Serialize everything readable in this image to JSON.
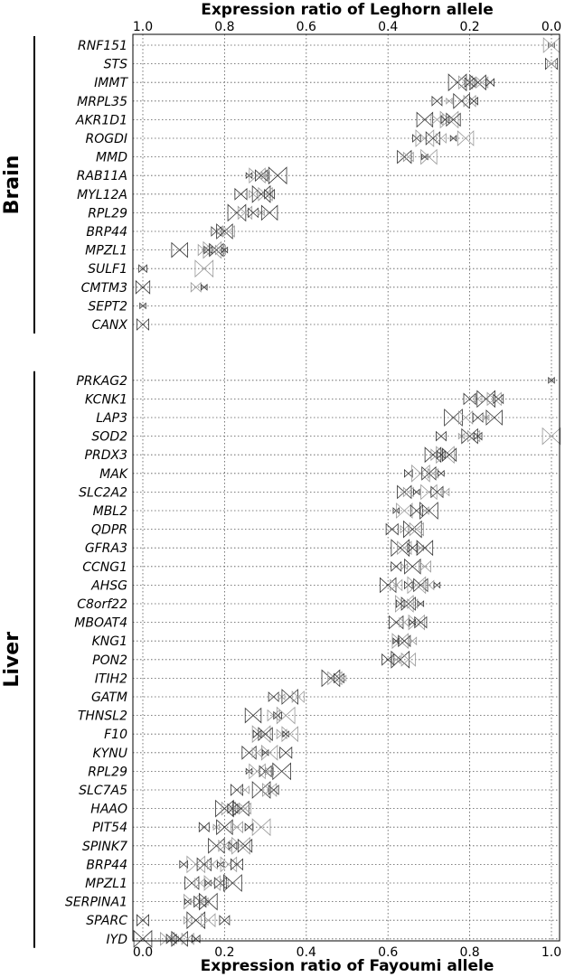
{
  "chart_data": {
    "type": "scatter",
    "xlabel_top": "Expression ratio of Leghorn allele",
    "xlabel_bottom": "Expression ratio of Fayoumi allele",
    "xlim": [
      0.0,
      1.0
    ],
    "bottom_ticks": [
      "0.0",
      "0.2",
      "0.4",
      "0.6",
      "0.8",
      "1.0"
    ],
    "top_ticks": [
      "1.0",
      "0.8",
      "0.6",
      "0.4",
      "0.2",
      "0.0"
    ],
    "grid": true,
    "marker": "bowtie triangles (size proportional to read depth)",
    "groups": [
      {
        "name": "Brain",
        "genes": [
          {
            "label": "RNF151",
            "values": [
              1.0,
              1.0
            ]
          },
          {
            "label": "STS",
            "values": [
              1.0,
              1.0
            ]
          },
          {
            "label": "IMMT",
            "values": [
              0.77,
              0.79,
              0.8,
              0.81,
              0.82,
              0.83,
              0.85
            ]
          },
          {
            "label": "MRPL35",
            "values": [
              0.72,
              0.75,
              0.78,
              0.8,
              0.81
            ]
          },
          {
            "label": "AKR1D1",
            "values": [
              0.69,
              0.72,
              0.74,
              0.75,
              0.76
            ]
          },
          {
            "label": "ROGDI",
            "values": [
              0.67,
              0.69,
              0.71,
              0.73,
              0.76,
              0.79
            ]
          },
          {
            "label": "MMD",
            "values": [
              0.64,
              0.65,
              0.69,
              0.7
            ]
          },
          {
            "label": "RAB11A",
            "values": [
              0.26,
              0.28,
              0.29,
              0.3,
              0.33
            ]
          },
          {
            "label": "MYL12A",
            "values": [
              0.24,
              0.27,
              0.29,
              0.3,
              0.31
            ]
          },
          {
            "label": "RPL29",
            "values": [
              0.23,
              0.25,
              0.27,
              0.29,
              0.31
            ]
          },
          {
            "label": "BRP44",
            "values": [
              0.18,
              0.19,
              0.2,
              0.21
            ]
          },
          {
            "label": "MPZL1",
            "values": [
              0.09,
              0.15,
              0.16,
              0.17,
              0.18,
              0.19,
              0.2
            ]
          },
          {
            "label": "SULF1",
            "values": [
              0.0,
              0.15
            ]
          },
          {
            "label": "CMTM3",
            "values": [
              0.0,
              0.13,
              0.15
            ]
          },
          {
            "label": "SEPT2",
            "values": [
              0.0
            ]
          },
          {
            "label": "CANX",
            "values": [
              0.0
            ]
          }
        ]
      },
      {
        "name": "Liver",
        "genes": [
          {
            "label": "PRKAG2",
            "values": [
              1.0
            ]
          },
          {
            "label": "KCNK1",
            "values": [
              0.8,
              0.82,
              0.84,
              0.86,
              0.87
            ]
          },
          {
            "label": "LAP3",
            "values": [
              0.76,
              0.79,
              0.82,
              0.84,
              0.86
            ]
          },
          {
            "label": "SOD2",
            "values": [
              0.73,
              0.78,
              0.8,
              0.81,
              0.82,
              1.0
            ]
          },
          {
            "label": "PRDX3",
            "values": [
              0.71,
              0.72,
              0.73,
              0.74,
              0.75
            ]
          },
          {
            "label": "MAK",
            "values": [
              0.65,
              0.68,
              0.7,
              0.71,
              0.73
            ]
          },
          {
            "label": "SLC2A2",
            "values": [
              0.64,
              0.65,
              0.67,
              0.7,
              0.72,
              0.74
            ]
          },
          {
            "label": "MBL2",
            "values": [
              0.62,
              0.64,
              0.67,
              0.69,
              0.7
            ]
          },
          {
            "label": "QDPR",
            "values": [
              0.61,
              0.64,
              0.66,
              0.67
            ]
          },
          {
            "label": "GFRA3",
            "values": [
              0.63,
              0.64,
              0.66,
              0.68,
              0.69
            ]
          },
          {
            "label": "CCNG1",
            "values": [
              0.62,
              0.64,
              0.66,
              0.69
            ]
          },
          {
            "label": "AHSG",
            "values": [
              0.6,
              0.62,
              0.65,
              0.67,
              0.68,
              0.7,
              0.72
            ]
          },
          {
            "label": "C8orf22",
            "values": [
              0.63,
              0.64,
              0.65,
              0.66,
              0.68
            ]
          },
          {
            "label": "MBOAT4",
            "values": [
              0.62,
              0.64,
              0.66,
              0.67,
              0.68
            ]
          },
          {
            "label": "KNG1",
            "values": [
              0.62,
              0.63,
              0.64,
              0.66
            ]
          },
          {
            "label": "PON2",
            "values": [
              0.6,
              0.62,
              0.63,
              0.65
            ]
          },
          {
            "label": "ITIH2",
            "values": [
              0.46,
              0.47,
              0.48,
              0.49
            ]
          },
          {
            "label": "GATM",
            "values": [
              0.32,
              0.34,
              0.36,
              0.38
            ]
          },
          {
            "label": "THNSL2",
            "values": [
              0.27,
              0.32,
              0.33,
              0.35
            ]
          },
          {
            "label": "F10",
            "values": [
              0.28,
              0.29,
              0.3,
              0.34,
              0.35,
              0.36
            ]
          },
          {
            "label": "KYNU",
            "values": [
              0.26,
              0.28,
              0.3,
              0.31,
              0.35
            ]
          },
          {
            "label": "RPL29",
            "values": [
              0.26,
              0.28,
              0.3,
              0.31,
              0.34
            ]
          },
          {
            "label": "SLC7A5",
            "values": [
              0.23,
              0.25,
              0.29,
              0.31,
              0.32
            ]
          },
          {
            "label": "HAAO",
            "values": [
              0.2,
              0.21,
              0.22,
              0.23,
              0.24,
              0.25
            ]
          },
          {
            "label": "PIT54",
            "values": [
              0.15,
              0.18,
              0.2,
              0.23,
              0.26,
              0.29
            ]
          },
          {
            "label": "SPINK7",
            "values": [
              0.18,
              0.2,
              0.22,
              0.24,
              0.25
            ]
          },
          {
            "label": "BRP44",
            "values": [
              0.1,
              0.13,
              0.15,
              0.17,
              0.19,
              0.21,
              0.23
            ]
          },
          {
            "label": "MPZL1",
            "values": [
              0.12,
              0.14,
              0.16,
              0.17,
              0.19,
              0.2,
              0.22
            ]
          },
          {
            "label": "SERPINA1",
            "values": [
              0.11,
              0.12,
              0.14,
              0.15,
              0.16
            ]
          },
          {
            "label": "SPARC",
            "values": [
              0.0,
              0.11,
              0.13,
              0.16,
              0.2
            ]
          },
          {
            "label": "IYD",
            "values": [
              0.0,
              0.06,
              0.07,
              0.08,
              0.09,
              0.11,
              0.13
            ]
          }
        ]
      }
    ]
  },
  "colors": {
    "marker_light": "#999999",
    "marker_dark": "#333333",
    "grid": "#555555",
    "text": "#000000"
  }
}
